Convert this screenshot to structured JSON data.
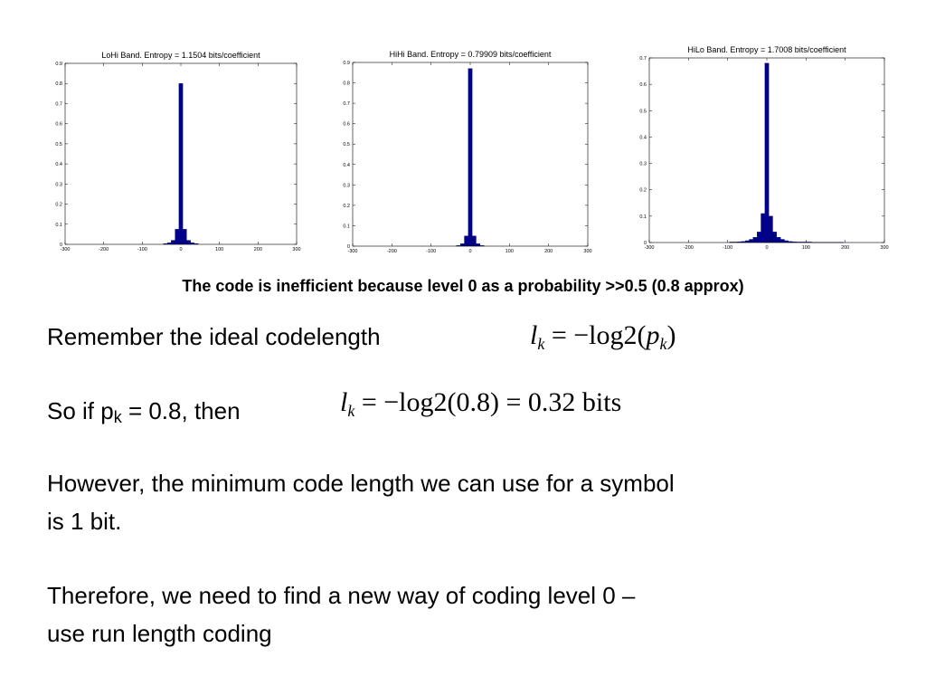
{
  "chart_data": [
    {
      "type": "bar",
      "title": "LoHi Band. Entropy = 1.1504 bits/coefficient",
      "x_ticks": [
        -300,
        -200,
        -100,
        0,
        100,
        200,
        300
      ],
      "y_ticks": [
        0,
        0.1,
        0.2,
        0.3,
        0.4,
        0.5,
        0.6,
        0.7,
        0.8,
        0.9
      ],
      "y_tick_labels": [
        "0",
        "0.1",
        "0.2",
        "0.3",
        "0.4",
        "0.5",
        "0.6",
        "0.7",
        "0.8",
        "0.9"
      ],
      "xlim": [
        -300,
        300
      ],
      "ylim": [
        0,
        0.9
      ],
      "bin_width": 10,
      "bins": [
        {
          "x": -40,
          "y": 0.004
        },
        {
          "x": -30,
          "y": 0.008
        },
        {
          "x": -20,
          "y": 0.02
        },
        {
          "x": -10,
          "y": 0.075
        },
        {
          "x": 0,
          "y": 0.8
        },
        {
          "x": 10,
          "y": 0.075
        },
        {
          "x": 20,
          "y": 0.02
        },
        {
          "x": 30,
          "y": 0.008
        },
        {
          "x": 40,
          "y": 0.004
        }
      ]
    },
    {
      "type": "bar",
      "title": "HiHi Band. Entropy = 0.79909 bits/coefficient",
      "x_ticks": [
        -300,
        -200,
        -100,
        0,
        100,
        200,
        300
      ],
      "y_ticks": [
        0,
        0.1,
        0.2,
        0.3,
        0.4,
        0.5,
        0.6,
        0.7,
        0.8,
        0.9
      ],
      "y_tick_labels": [
        "0",
        "0.1",
        "0.2",
        "0.3",
        "0.4",
        "0.5",
        "0.6",
        "0.7",
        "0.8",
        "0.9"
      ],
      "xlim": [
        -300,
        300
      ],
      "ylim": [
        0,
        0.9
      ],
      "bin_width": 10,
      "bins": [
        {
          "x": -30,
          "y": 0.003
        },
        {
          "x": -20,
          "y": 0.012
        },
        {
          "x": -10,
          "y": 0.05
        },
        {
          "x": 0,
          "y": 0.87
        },
        {
          "x": 10,
          "y": 0.05
        },
        {
          "x": 20,
          "y": 0.012
        },
        {
          "x": 30,
          "y": 0.003
        }
      ]
    },
    {
      "type": "bar",
      "title": "HiLo Band. Entropy = 1.7008 bits/coefficient",
      "x_ticks": [
        -300,
        -200,
        -100,
        0,
        100,
        200,
        300
      ],
      "y_ticks": [
        0,
        0.1,
        0.2,
        0.3,
        0.4,
        0.5,
        0.6,
        0.7
      ],
      "y_tick_labels": [
        "0",
        "0.1",
        "0.2",
        "0.3",
        "0.4",
        "0.5",
        "0.6",
        "0.7"
      ],
      "xlim": [
        -300,
        300
      ],
      "ylim": [
        0,
        0.7
      ],
      "bin_width": 10,
      "bins": [
        {
          "x": -90,
          "y": 0.002
        },
        {
          "x": -80,
          "y": 0.002
        },
        {
          "x": -70,
          "y": 0.003
        },
        {
          "x": -60,
          "y": 0.004
        },
        {
          "x": -50,
          "y": 0.007
        },
        {
          "x": -40,
          "y": 0.012
        },
        {
          "x": -30,
          "y": 0.02
        },
        {
          "x": -20,
          "y": 0.04
        },
        {
          "x": -10,
          "y": 0.11
        },
        {
          "x": 0,
          "y": 0.68
        },
        {
          "x": 10,
          "y": 0.1
        },
        {
          "x": 20,
          "y": 0.04
        },
        {
          "x": 30,
          "y": 0.02
        },
        {
          "x": 40,
          "y": 0.012
        },
        {
          "x": 50,
          "y": 0.007
        },
        {
          "x": 60,
          "y": 0.004
        },
        {
          "x": 70,
          "y": 0.003
        },
        {
          "x": 80,
          "y": 0.002
        },
        {
          "x": 90,
          "y": 0.002
        },
        {
          "x": 100,
          "y": 0.002
        },
        {
          "x": 110,
          "y": 0.002
        },
        {
          "x": 120,
          "y": 0.001
        },
        {
          "x": 130,
          "y": 0.001
        },
        {
          "x": 140,
          "y": 0.001
        },
        {
          "x": 150,
          "y": 0.001
        },
        {
          "x": 160,
          "y": 0.001
        },
        {
          "x": 170,
          "y": 0.001
        },
        {
          "x": 180,
          "y": 0.001
        },
        {
          "x": 190,
          "y": 0.001
        }
      ]
    }
  ],
  "colors": {
    "bar": "#00008b",
    "bar_edge": "#000066"
  },
  "text": {
    "caption": "The code is inefficient because level 0 as a probability >>0.5 (0.8 approx)",
    "line1": "Remember the ideal codelength",
    "line2_prefix": "So if p",
    "line2_sub": "k",
    "line2_suffix": " = 0.8, then",
    "line3a": "However, the minimum code length we can use for a symbol",
    "line3b": "is 1 bit.",
    "line4a": "Therefore, we need to find a new way of coding level 0 –",
    "line4b": "use run length coding"
  },
  "formula1": {
    "var": "l",
    "sub": "k",
    "rhs": " = −log2(",
    "p": "p",
    "p_sub": "k",
    "close": ")"
  },
  "formula2": {
    "var": "l",
    "sub": "k",
    "rhs": " = −log2(0.8) = 0.32 bits"
  }
}
